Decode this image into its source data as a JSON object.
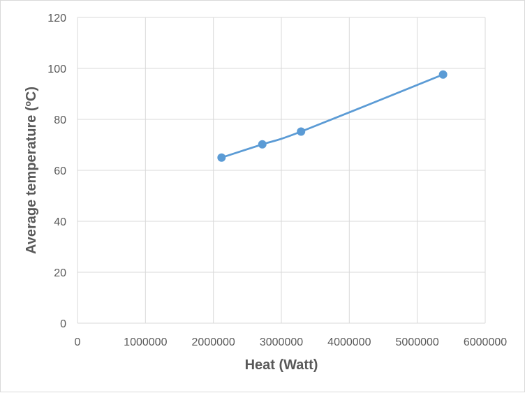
{
  "chart_data": {
    "type": "line",
    "title": "",
    "xlabel": "Heat (Watt)",
    "ylabel": "Average temperature (ºC)",
    "xlim": [
      0,
      6000000
    ],
    "ylim": [
      0,
      120
    ],
    "x_ticks": [
      "0",
      "1000000",
      "2000000",
      "3000000",
      "4000000",
      "5000000",
      "6000000"
    ],
    "y_ticks": [
      "0",
      "20",
      "40",
      "60",
      "80",
      "100",
      "120"
    ],
    "grid": true,
    "legend": "none",
    "series": [
      {
        "color": "#5b9bd5",
        "x": [
          2120000,
          2720000,
          3290000,
          5380000
        ],
        "y": [
          65,
          70.2,
          75.2,
          97.6
        ]
      }
    ]
  }
}
